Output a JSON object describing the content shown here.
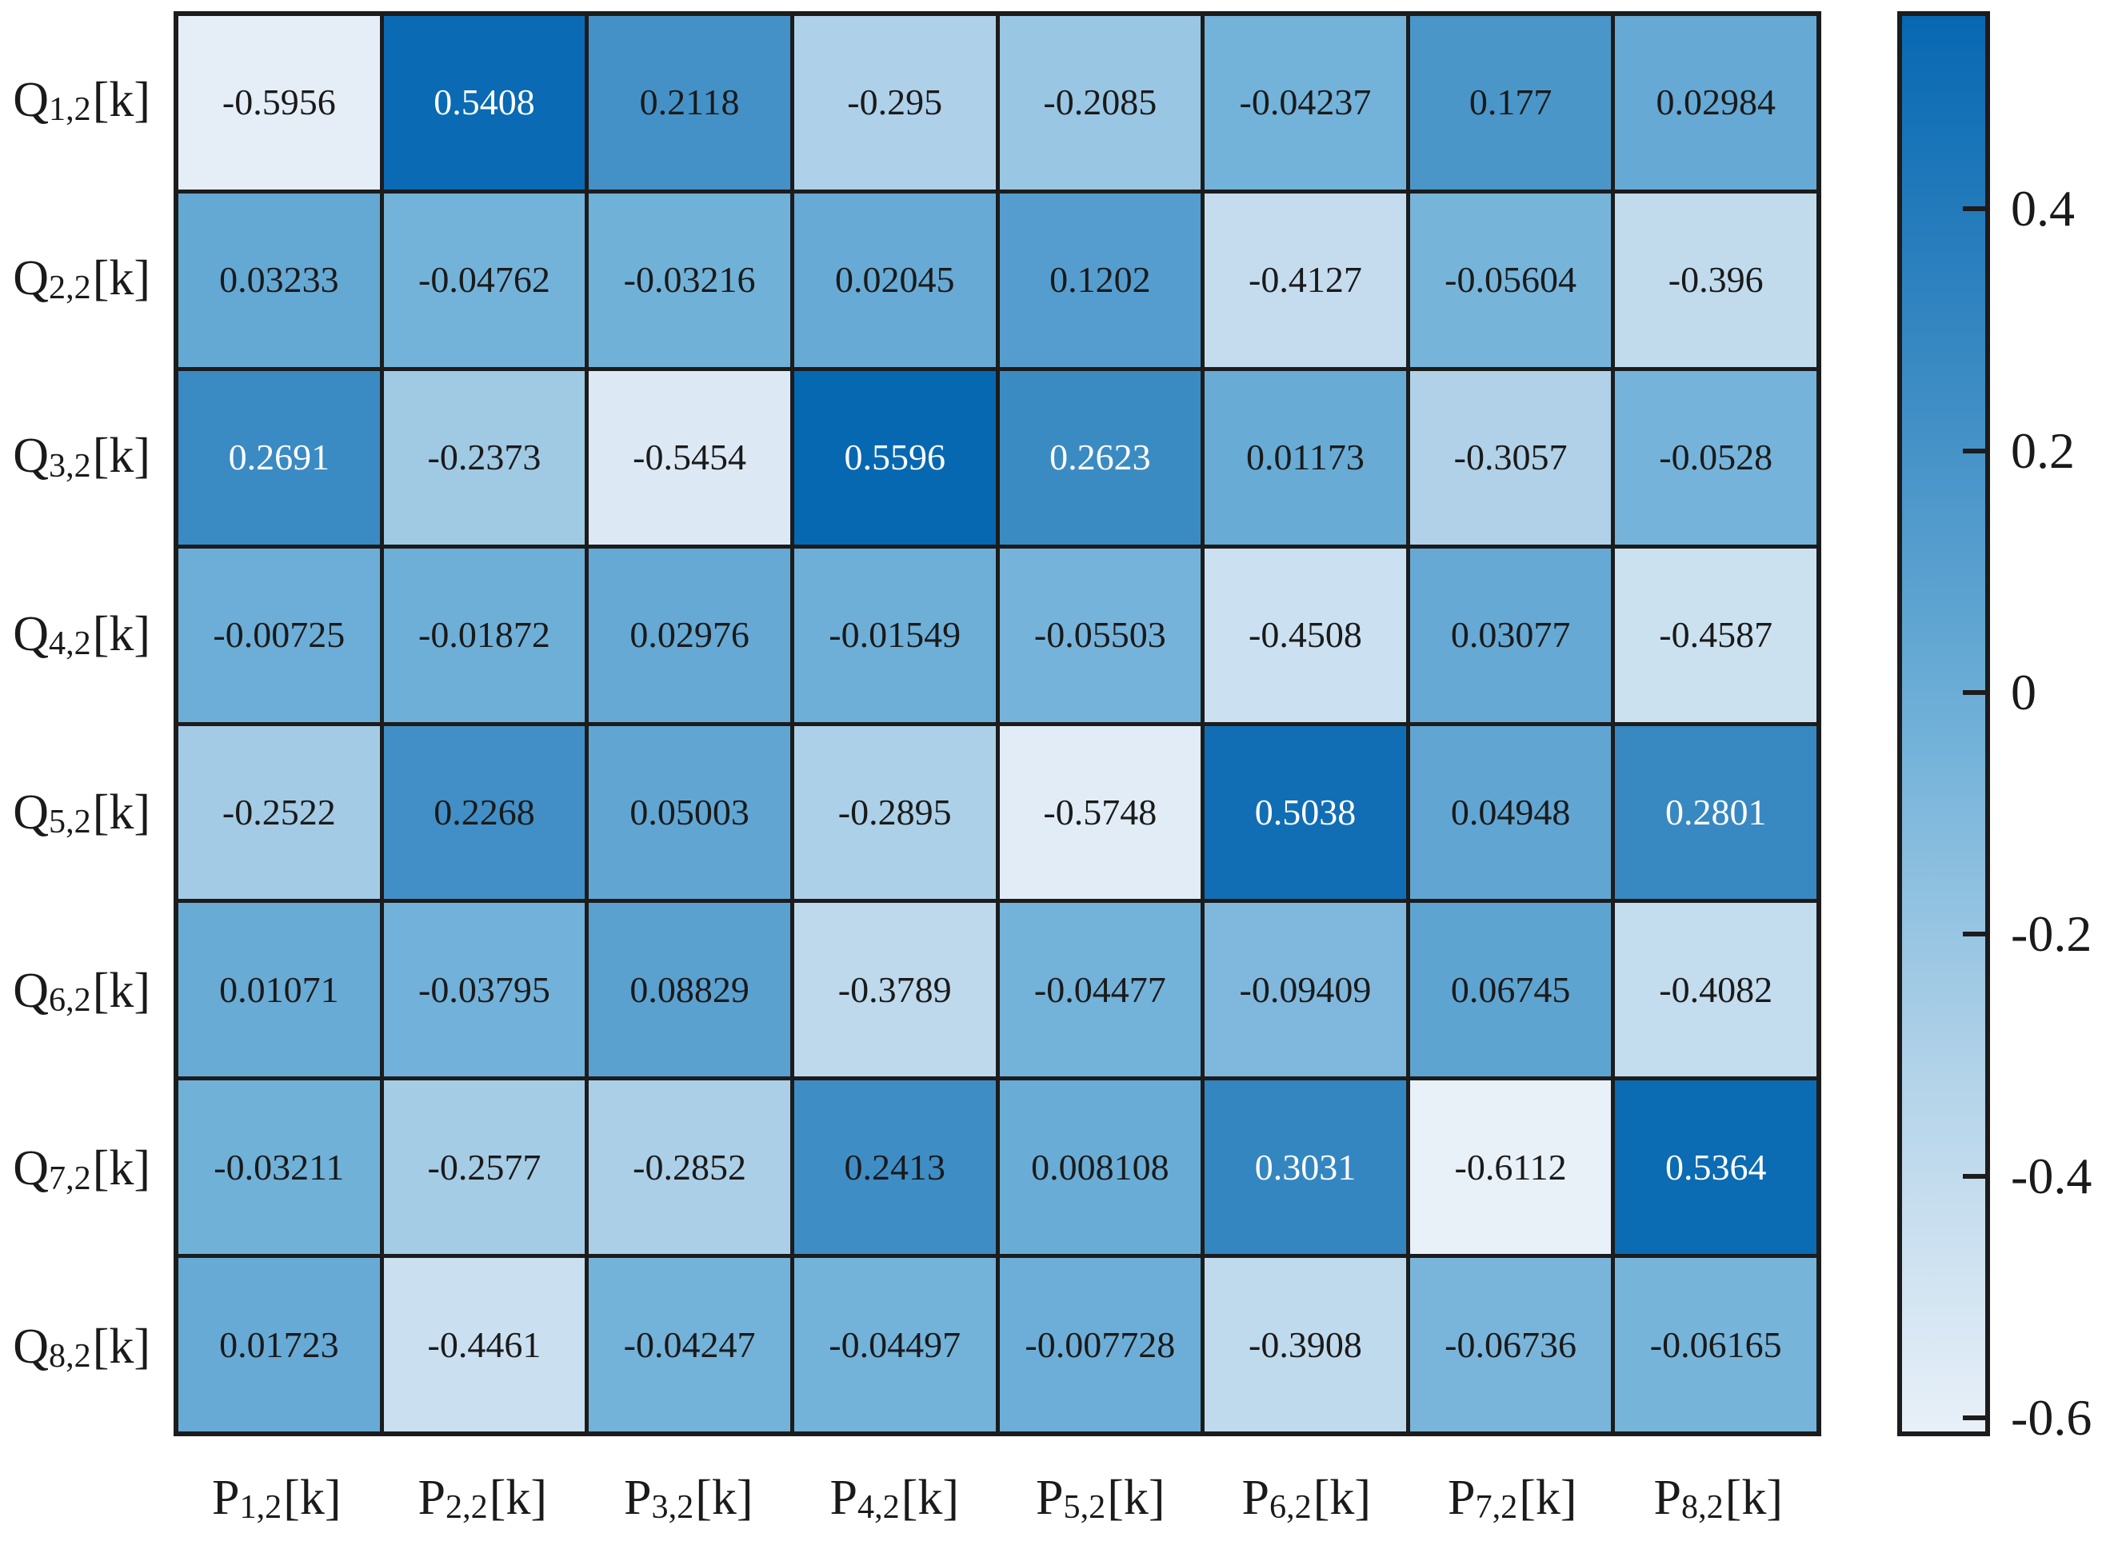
{
  "figure": {
    "background": "#ffffff",
    "grid_line_color": "#1c1c1c",
    "black_text_color": "#1a1a1a",
    "white_text_color": "#ffffff"
  },
  "chart_data": {
    "type": "heatmap",
    "title": "",
    "row_labels": [
      {
        "base": "Q",
        "sub": "1,2",
        "suffix": "[k]"
      },
      {
        "base": "Q",
        "sub": "2,2",
        "suffix": "[k]"
      },
      {
        "base": "Q",
        "sub": "3,2",
        "suffix": "[k]"
      },
      {
        "base": "Q",
        "sub": "4,2",
        "suffix": "[k]"
      },
      {
        "base": "Q",
        "sub": "5,2",
        "suffix": "[k]"
      },
      {
        "base": "Q",
        "sub": "6,2",
        "suffix": "[k]"
      },
      {
        "base": "Q",
        "sub": "7,2",
        "suffix": "[k]"
      },
      {
        "base": "Q",
        "sub": "8,2",
        "suffix": "[k]"
      }
    ],
    "col_labels": [
      {
        "base": "P",
        "sub": "1,2",
        "suffix": "[k]"
      },
      {
        "base": "P",
        "sub": "2,2",
        "suffix": "[k]"
      },
      {
        "base": "P",
        "sub": "3,2",
        "suffix": "[k]"
      },
      {
        "base": "P",
        "sub": "4,2",
        "suffix": "[k]"
      },
      {
        "base": "P",
        "sub": "5,2",
        "suffix": "[k]"
      },
      {
        "base": "P",
        "sub": "6,2",
        "suffix": "[k]"
      },
      {
        "base": "P",
        "sub": "7,2",
        "suffix": "[k]"
      },
      {
        "base": "P",
        "sub": "8,2",
        "suffix": "[k]"
      }
    ],
    "values": [
      [
        "-0.5956",
        "0.5408",
        "0.2118",
        "-0.295",
        "-0.2085",
        "-0.04237",
        "0.177",
        "0.02984"
      ],
      [
        "0.03233",
        "-0.04762",
        "-0.03216",
        "0.02045",
        "0.1202",
        "-0.4127",
        "-0.05604",
        "-0.396"
      ],
      [
        "0.2691",
        "-0.2373",
        "-0.5454",
        "0.5596",
        "0.2623",
        "0.01173",
        "-0.3057",
        "-0.0528"
      ],
      [
        "-0.00725",
        "-0.01872",
        "0.02976",
        "-0.01549",
        "-0.05503",
        "-0.4508",
        "0.03077",
        "-0.4587"
      ],
      [
        "-0.2522",
        "0.2268",
        "0.05003",
        "-0.2895",
        "-0.5748",
        "0.5038",
        "0.04948",
        "0.2801"
      ],
      [
        "0.01071",
        "-0.03795",
        "0.08829",
        "-0.3789",
        "-0.04477",
        "-0.09409",
        "0.06745",
        "-0.4082"
      ],
      [
        "-0.03211",
        "-0.2577",
        "-0.2852",
        "0.2413",
        "0.008108",
        "0.3031",
        "-0.6112",
        "0.5364"
      ],
      [
        "0.01723",
        "-0.4461",
        "-0.04247",
        "-0.04497",
        "-0.007728",
        "-0.3908",
        "-0.06736",
        "-0.06165"
      ]
    ],
    "vmin": -0.6112,
    "vmax": 0.5596,
    "white_text_threshold": 0.26,
    "colormap_stops": [
      "#e8f0f8",
      "#b3d3e9",
      "#6fb0d8",
      "#3a8ac3",
      "#0768b2"
    ],
    "colorbar": {
      "position": "right",
      "tick_labels": [
        "0.4",
        "0.2",
        "0",
        "-0.2",
        "-0.4",
        "-0.6"
      ],
      "tick_values": [
        0.4,
        0.2,
        0,
        -0.2,
        -0.4,
        -0.6
      ]
    }
  }
}
